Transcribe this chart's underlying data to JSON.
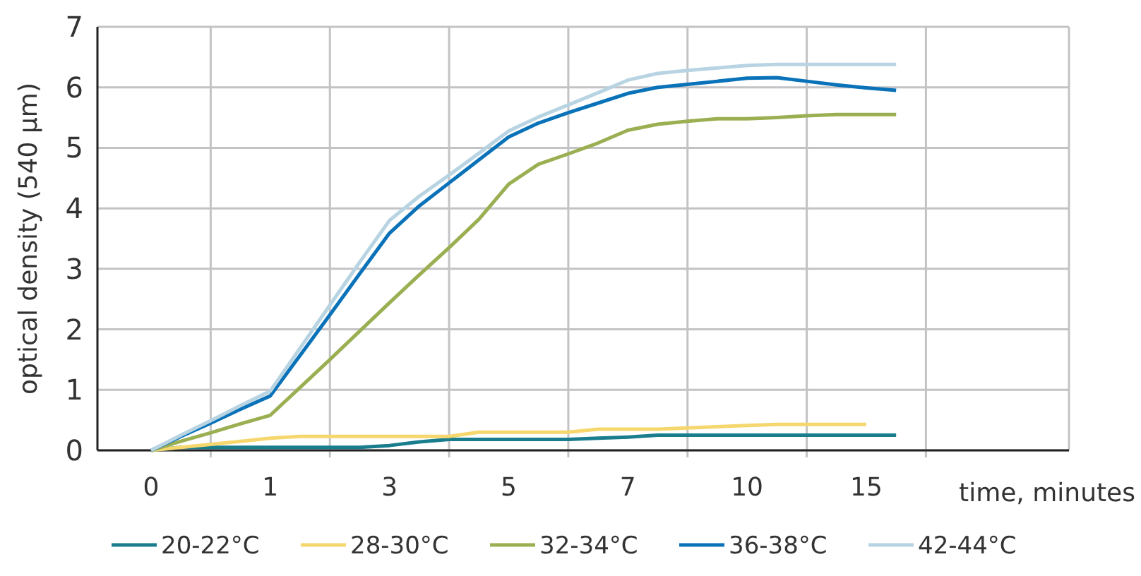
{
  "chart_data": {
    "type": "line",
    "ylabel": "optical density (540 µm)",
    "xlabel": "time, minutes",
    "categories": [
      "0",
      null,
      null,
      null,
      "1",
      null,
      null,
      null,
      "3",
      null,
      null,
      null,
      "5",
      null,
      null,
      null,
      "7",
      null,
      null,
      null,
      "10",
      null,
      null,
      null,
      "15",
      null
    ],
    "ylim": [
      0,
      7
    ],
    "yticks": [
      0,
      1,
      2,
      3,
      4,
      5,
      6,
      7
    ],
    "grid": true,
    "legend": "bottom",
    "line_style": "solid",
    "series": [
      {
        "name": "20-22°C",
        "color": "#1a7d8e",
        "values": [
          0,
          0.05,
          0.05,
          0.05,
          0.05,
          0.05,
          0.05,
          0.05,
          0.08,
          0.14,
          0.18,
          0.18,
          0.18,
          0.18,
          0.18,
          0.2,
          0.22,
          0.25,
          0.25,
          0.25,
          0.25,
          0.25,
          0.25,
          0.25,
          0.25,
          0.25
        ]
      },
      {
        "name": "28-30°C",
        "color": "#f5d76e",
        "values": [
          0,
          0.05,
          0.1,
          0.15,
          0.2,
          0.23,
          0.23,
          0.23,
          0.23,
          0.23,
          0.23,
          0.3,
          0.3,
          0.3,
          0.3,
          0.35,
          0.35,
          0.35,
          0.37,
          0.39,
          0.41,
          0.43,
          0.43,
          0.43,
          0.43,
          null
        ]
      },
      {
        "name": "32-34°C",
        "color": "#9aaf52",
        "values": [
          0,
          0.15,
          0.29,
          0.44,
          0.58,
          1.04,
          1.5,
          1.97,
          2.44,
          2.9,
          3.35,
          3.82,
          4.4,
          4.73,
          4.9,
          5.08,
          5.29,
          5.39,
          5.44,
          5.48,
          5.48,
          5.5,
          5.53,
          5.55,
          5.55,
          5.55
        ]
      },
      {
        "name": "36-38°C",
        "color": "#0a72b8",
        "values": [
          0,
          0.23,
          0.45,
          0.68,
          0.9,
          1.57,
          2.24,
          2.92,
          3.59,
          4.04,
          4.42,
          4.8,
          5.18,
          5.41,
          5.58,
          5.74,
          5.9,
          6.0,
          6.05,
          6.1,
          6.15,
          6.16,
          6.1,
          6.04,
          5.99,
          5.95
        ]
      },
      {
        "name": "42-44°C",
        "color": "#b8d4e3",
        "values": [
          0,
          0.25,
          0.49,
          0.74,
          0.98,
          1.69,
          2.4,
          3.11,
          3.8,
          4.2,
          4.55,
          4.91,
          5.28,
          5.51,
          5.71,
          5.91,
          6.12,
          6.23,
          6.28,
          6.32,
          6.36,
          6.38,
          6.38,
          6.38,
          6.38,
          6.38
        ]
      }
    ]
  }
}
